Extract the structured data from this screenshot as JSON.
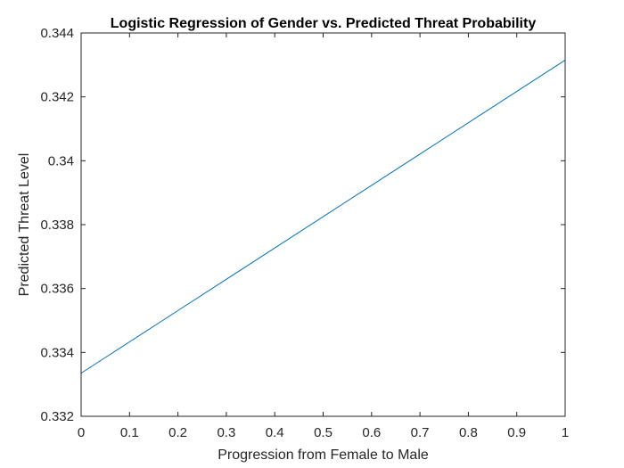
{
  "chart_data": {
    "type": "line",
    "title": "Logistic Regression of Gender vs. Predicted Threat Probability",
    "xlabel": "Progression from Female to Male",
    "ylabel": "Predicted Threat Level",
    "xlim": [
      0,
      1
    ],
    "ylim": [
      0.332,
      0.344
    ],
    "x_ticks": [
      0,
      0.1,
      0.2,
      0.3,
      0.4,
      0.5,
      0.6,
      0.7,
      0.8,
      0.9,
      1
    ],
    "x_tick_labels": [
      "0",
      "0.1",
      "0.2",
      "0.3",
      "0.4",
      "0.5",
      "0.6",
      "0.7",
      "0.8",
      "0.9",
      "1"
    ],
    "y_ticks": [
      0.332,
      0.334,
      0.336,
      0.338,
      0.34,
      0.342,
      0.344
    ],
    "y_tick_labels": [
      "0.332",
      "0.334",
      "0.336",
      "0.338",
      "0.34",
      "0.342",
      "0.344"
    ],
    "grid": false,
    "box": true,
    "series": [
      {
        "color": "#0072BD",
        "x": [
          0,
          0.1,
          0.2,
          0.3,
          0.4,
          0.5,
          0.6,
          0.7,
          0.8,
          0.9,
          1
        ],
        "values": [
          0.33335,
          0.33433,
          0.33531,
          0.33629,
          0.33727,
          0.33825,
          0.33923,
          0.34021,
          0.34119,
          0.34217,
          0.34315
        ]
      }
    ],
    "colors": {
      "axes": "#262626",
      "background": "#ffffff"
    }
  }
}
